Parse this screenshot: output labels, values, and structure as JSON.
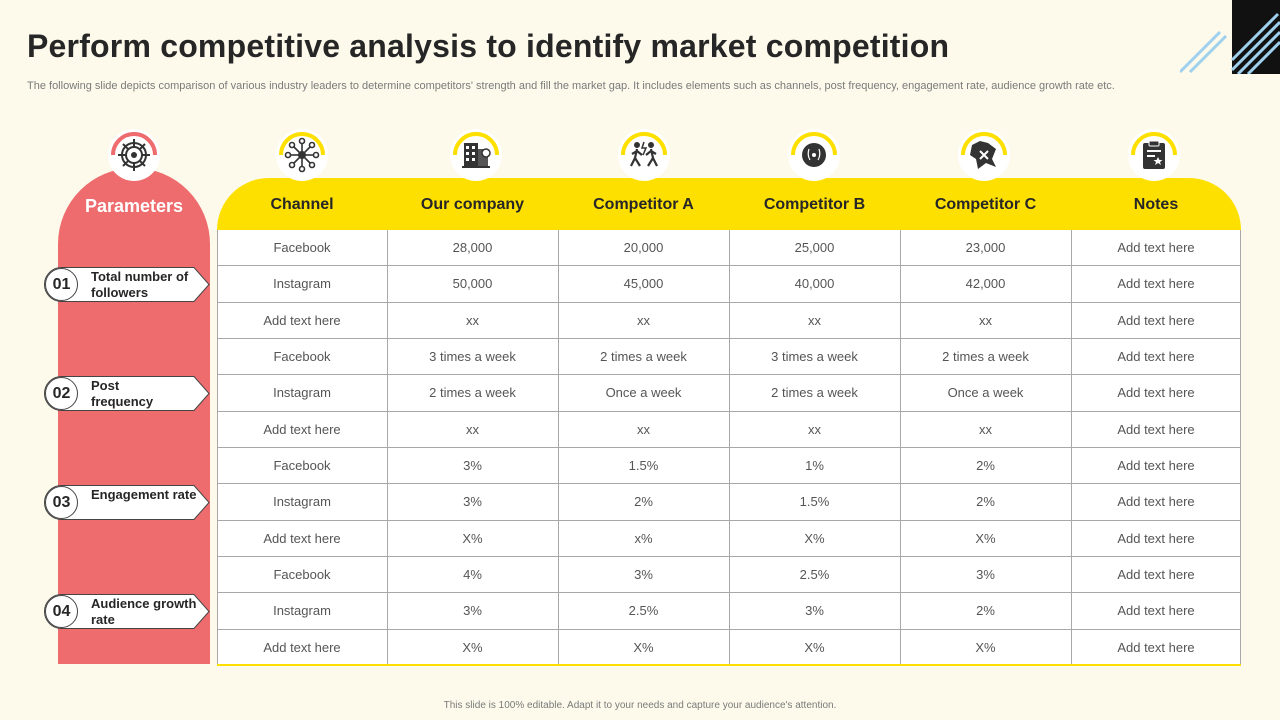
{
  "title": "Perform competitive analysis to identify market competition",
  "subtitle": "The following slide depicts comparison of various industry leaders to determine competitors' strength and fill the market gap. It includes elements such as channels, post frequency, engagement rate, audience growth rate etc.",
  "parameters_title": "Parameters",
  "parameters": [
    {
      "num": "01",
      "label": "Total number of followers"
    },
    {
      "num": "02",
      "label": "Post frequency"
    },
    {
      "num": "03",
      "label": "Engagement rate"
    },
    {
      "num": "04",
      "label": "Audience growth rate"
    }
  ],
  "columns": [
    "Channel",
    "Our company",
    "Competitor A",
    "Competitor B",
    "Competitor C",
    "Notes"
  ],
  "rows": [
    [
      "Facebook",
      "28,000",
      "20,000",
      "25,000",
      "23,000",
      "Add text here"
    ],
    [
      "Instagram",
      "50,000",
      "45,000",
      "40,000",
      "42,000",
      "Add text here"
    ],
    [
      "Add text here",
      "xx",
      "xx",
      "xx",
      "xx",
      "Add text here"
    ],
    [
      "Facebook",
      "3 times a week",
      "2 times a week",
      "3 times a week",
      "2 times a week",
      "Add text here"
    ],
    [
      "Instagram",
      "2 times a week",
      "Once a week",
      "2 times a week",
      "Once a week",
      "Add text here"
    ],
    [
      "Add text here",
      "xx",
      "xx",
      "xx",
      "xx",
      "Add text here"
    ],
    [
      "Facebook",
      "3%",
      "1.5%",
      "1%",
      "2%",
      "Add text here"
    ],
    [
      "Instagram",
      "3%",
      "2%",
      "1.5%",
      "2%",
      "Add text here"
    ],
    [
      "Add text here",
      "X%",
      "x%",
      "X%",
      "X%",
      "Add text here"
    ],
    [
      "Facebook",
      "4%",
      "3%",
      "2.5%",
      "3%",
      "Add text here"
    ],
    [
      "Instagram",
      "3%",
      "2.5%",
      "3%",
      "2%",
      "Add text here"
    ],
    [
      "Add text here",
      "X%",
      "X%",
      "X%",
      "X%",
      "Add text here"
    ]
  ],
  "footer": "This slide is 100% editable. Adapt it to your needs and capture your audience's attention.",
  "icons": [
    "gear-network-icon",
    "network-hub-icon",
    "buildings-icon",
    "competitors-icon",
    "target-icon",
    "chess-icon",
    "clipboard-icon"
  ],
  "colors": {
    "accent_red": "#ee6b6e",
    "accent_yellow": "#fee000",
    "background": "#fdfaeb"
  }
}
